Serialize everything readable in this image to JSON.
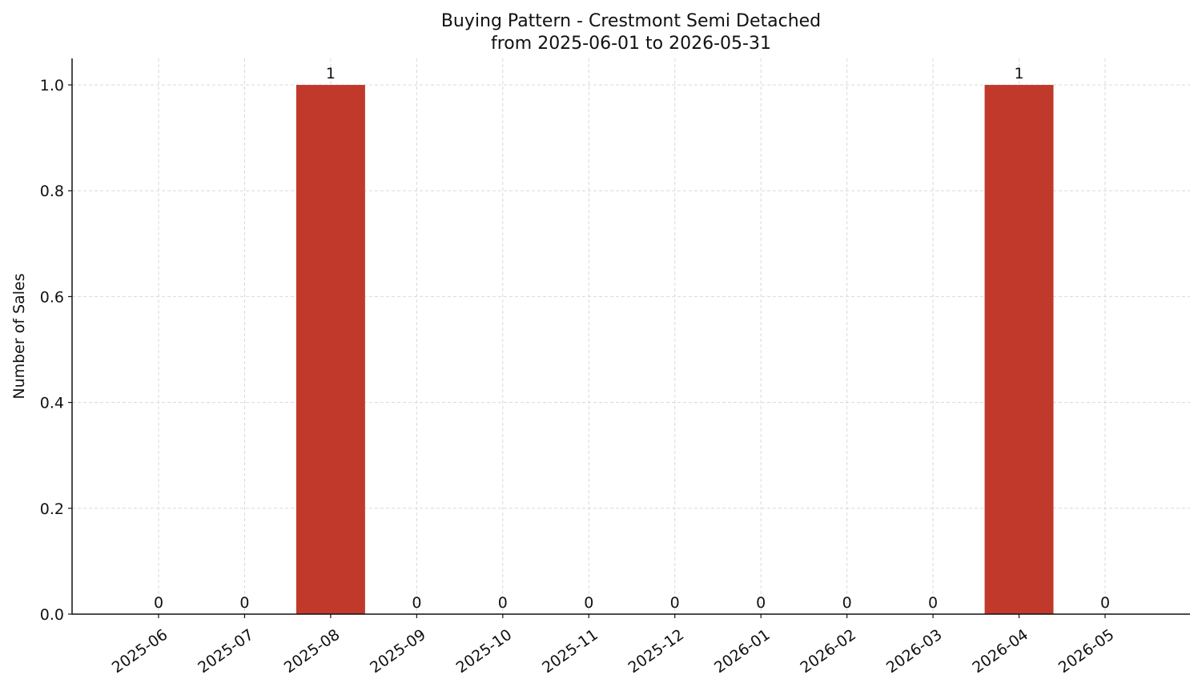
{
  "chart_data": {
    "type": "bar",
    "title": "Buying Pattern - Crestmont Semi Detached",
    "subtitle": "from 2025-06-01 to 2026-05-31",
    "y_label": "Number of Sales",
    "categories": [
      "2025-06",
      "2025-07",
      "2025-08",
      "2025-09",
      "2025-10",
      "2025-11",
      "2025-12",
      "2026-01",
      "2026-02",
      "2026-03",
      "2026-04",
      "2026-05"
    ],
    "values": [
      0,
      0,
      1,
      0,
      0,
      0,
      0,
      0,
      0,
      0,
      1,
      0
    ],
    "color": "#c0392b",
    "ylim": [
      0,
      1.05
    ],
    "yticks": [
      {
        "value": 0,
        "label": "0.0"
      },
      0.2,
      0.4,
      0.6,
      0.8,
      {
        "value": 1,
        "label": "1.0"
      }
    ],
    "grid": true
  }
}
